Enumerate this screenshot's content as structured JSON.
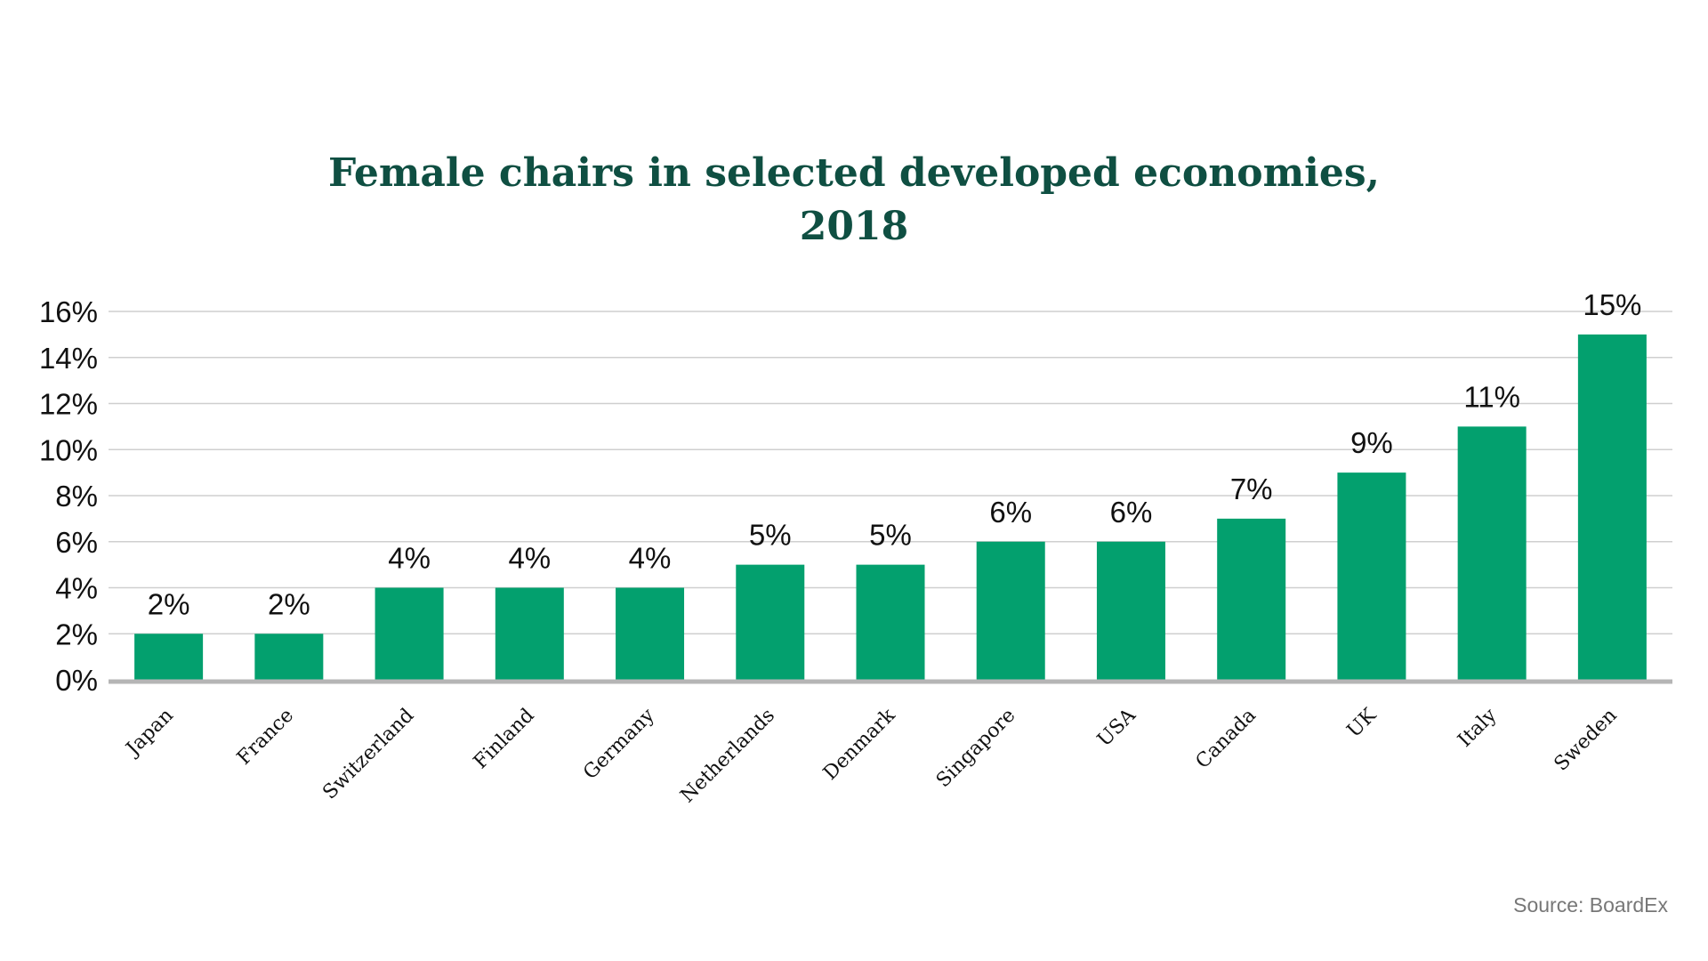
{
  "chart_data": {
    "type": "bar",
    "title_line1": "Female chairs in selected developed economies,",
    "title_line2": "2018",
    "categories": [
      "Japan",
      "France",
      "Switzerland",
      "Finland",
      "Germany",
      "Netherlands",
      "Denmark",
      "Singapore",
      "USA",
      "Canada",
      "UK",
      "Italy",
      "Sweden"
    ],
    "values": [
      2,
      2,
      4,
      4,
      4,
      5,
      5,
      6,
      6,
      7,
      9,
      11,
      15
    ],
    "data_labels": [
      "2%",
      "2%",
      "4%",
      "4%",
      "4%",
      "5%",
      "5%",
      "6%",
      "6%",
      "7%",
      "9%",
      "11%",
      "15%"
    ],
    "y_ticks": [
      0,
      2,
      4,
      6,
      8,
      10,
      12,
      14,
      16
    ],
    "y_tick_labels": [
      "0%",
      "2%",
      "4%",
      "6%",
      "8%",
      "10%",
      "12%",
      "14%",
      "16%"
    ],
    "ylim": [
      0,
      16
    ],
    "grid": true,
    "legend": "none",
    "xlabel": "",
    "ylabel": "",
    "source": "Source: BoardEx"
  },
  "colors": {
    "bar": "#03a06e",
    "title": "#0f4f42",
    "grid": "#cfcfcf",
    "baseline": "#b5b5b5",
    "source_text": "#777777"
  }
}
